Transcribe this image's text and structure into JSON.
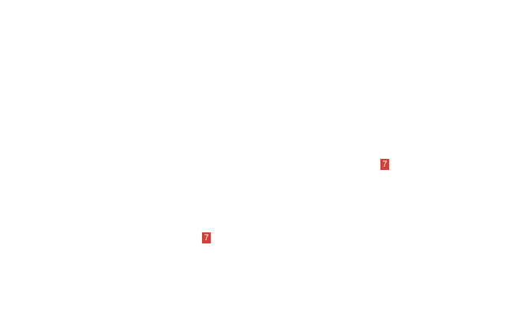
{
  "badges": [
    {
      "label": "7",
      "color": "#d0413a"
    },
    {
      "label": "7",
      "color": "#d0413a"
    }
  ]
}
